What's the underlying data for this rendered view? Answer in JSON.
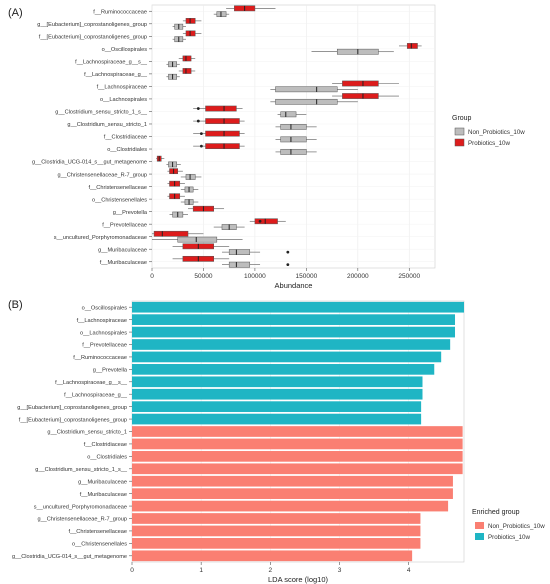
{
  "chart_data": [
    {
      "panel": "(A)",
      "type": "boxplot",
      "xlabel": "Abundance",
      "xlim": [
        0,
        275000
      ],
      "xticks": [
        0,
        50000,
        100000,
        150000,
        200000,
        250000
      ],
      "grid": true,
      "legend_title": "Group",
      "legend_placement": "right",
      "groups": [
        {
          "name": "Non_Probiotics_10w",
          "color": "#bdbdbd"
        },
        {
          "name": "Probiotics_10w",
          "color": "#dd1c1c"
        }
      ],
      "taxa": [
        {
          "label": "f__Ruminococcaceae",
          "non": {
            "wmin": 60000,
            "q1": 63000,
            "median": 67000,
            "q3": 72000,
            "wmax": 75000,
            "outliers": []
          },
          "pro": {
            "wmin": 72000,
            "q1": 80000,
            "median": 90000,
            "q3": 100000,
            "wmax": 120000,
            "outliers": []
          }
        },
        {
          "label": "g__[Eubacterium]_coprostanoligenes_group",
          "non": {
            "wmin": 20000,
            "q1": 22000,
            "median": 26000,
            "q3": 30000,
            "wmax": 33000,
            "outliers": []
          },
          "pro": {
            "wmin": 30000,
            "q1": 33000,
            "median": 37000,
            "q3": 42000,
            "wmax": 48000,
            "outliers": []
          }
        },
        {
          "label": "f__[Eubacterium]_coprostanoligenes_group",
          "non": {
            "wmin": 20000,
            "q1": 22000,
            "median": 26000,
            "q3": 30000,
            "wmax": 33000,
            "outliers": []
          },
          "pro": {
            "wmin": 30000,
            "q1": 33000,
            "median": 37000,
            "q3": 42000,
            "wmax": 48000,
            "outliers": []
          }
        },
        {
          "label": "o__Oscillospirales",
          "non": {
            "wmin": 155000,
            "q1": 180000,
            "median": 200000,
            "q3": 220000,
            "wmax": 235000,
            "outliers": []
          },
          "pro": {
            "wmin": 240000,
            "q1": 248000,
            "median": 252000,
            "q3": 258000,
            "wmax": 262000,
            "outliers": []
          }
        },
        {
          "label": "f__Lachnospiraceae_g__s__",
          "non": {
            "wmin": 14000,
            "q1": 16000,
            "median": 20000,
            "q3": 24000,
            "wmax": 27000,
            "outliers": []
          },
          "pro": {
            "wmin": 26000,
            "q1": 30000,
            "median": 33000,
            "q3": 38000,
            "wmax": 42000,
            "outliers": []
          }
        },
        {
          "label": "f__Lachnospiraceae_g__",
          "non": {
            "wmin": 14000,
            "q1": 16000,
            "median": 20000,
            "q3": 24000,
            "wmax": 27000,
            "outliers": []
          },
          "pro": {
            "wmin": 26000,
            "q1": 30000,
            "median": 33000,
            "q3": 38000,
            "wmax": 42000,
            "outliers": []
          }
        },
        {
          "label": "f__Lachnospiraceae",
          "non": {
            "wmin": 115000,
            "q1": 120000,
            "median": 160000,
            "q3": 180000,
            "wmax": 200000,
            "outliers": []
          },
          "pro": {
            "wmin": 175000,
            "q1": 185000,
            "median": 205000,
            "q3": 220000,
            "wmax": 240000,
            "outliers": []
          }
        },
        {
          "label": "o__Lachnospirales",
          "non": {
            "wmin": 115000,
            "q1": 120000,
            "median": 160000,
            "q3": 180000,
            "wmax": 200000,
            "outliers": []
          },
          "pro": {
            "wmin": 175000,
            "q1": 185000,
            "median": 205000,
            "q3": 220000,
            "wmax": 240000,
            "outliers": []
          }
        },
        {
          "label": "g__Clostridium_sensu_stricto_1_s__",
          "non": {
            "wmin": 122000,
            "q1": 125000,
            "median": 130000,
            "q3": 140000,
            "wmax": 150000,
            "outliers": []
          },
          "pro": {
            "wmin": 40000,
            "q1": 52000,
            "median": 70000,
            "q3": 82000,
            "wmax": 88000,
            "outliers": [
              45000
            ]
          }
        },
        {
          "label": "g__Clostridium_sensu_stricto_1",
          "non": {
            "wmin": 120000,
            "q1": 125000,
            "median": 135000,
            "q3": 150000,
            "wmax": 160000,
            "outliers": []
          },
          "pro": {
            "wmin": 40000,
            "q1": 52000,
            "median": 70000,
            "q3": 85000,
            "wmax": 90000,
            "outliers": [
              45000
            ]
          }
        },
        {
          "label": "f__Clostridiaceae",
          "non": {
            "wmin": 120000,
            "q1": 125000,
            "median": 135000,
            "q3": 150000,
            "wmax": 160000,
            "outliers": []
          },
          "pro": {
            "wmin": 40000,
            "q1": 52000,
            "median": 70000,
            "q3": 85000,
            "wmax": 90000,
            "outliers": [
              48000
            ]
          }
        },
        {
          "label": "o__Clostridiales",
          "non": {
            "wmin": 120000,
            "q1": 125000,
            "median": 135000,
            "q3": 150000,
            "wmax": 160000,
            "outliers": []
          },
          "pro": {
            "wmin": 40000,
            "q1": 52000,
            "median": 70000,
            "q3": 85000,
            "wmax": 90000,
            "outliers": [
              48000
            ]
          }
        },
        {
          "label": "g__Clostridia_UCG-014_s__gut_metagenome",
          "non": {
            "wmin": 14000,
            "q1": 16000,
            "median": 20000,
            "q3": 24000,
            "wmax": 28000,
            "outliers": []
          },
          "pro": {
            "wmin": 4000,
            "q1": 5000,
            "median": 7000,
            "q3": 9000,
            "wmax": 12000,
            "outliers": []
          }
        },
        {
          "label": "g__Christensenellaceae_R-7_group",
          "non": {
            "wmin": 28000,
            "q1": 33000,
            "median": 37000,
            "q3": 42000,
            "wmax": 48000,
            "outliers": []
          },
          "pro": {
            "wmin": 15000,
            "q1": 17000,
            "median": 21000,
            "q3": 25000,
            "wmax": 30000,
            "outliers": []
          }
        },
        {
          "label": "f__Christensenellaceae",
          "non": {
            "wmin": 28000,
            "q1": 32000,
            "median": 36000,
            "q3": 40000,
            "wmax": 45000,
            "outliers": []
          },
          "pro": {
            "wmin": 15000,
            "q1": 17000,
            "median": 22000,
            "q3": 27000,
            "wmax": 32000,
            "outliers": []
          }
        },
        {
          "label": "o__Christensenellales",
          "non": {
            "wmin": 28000,
            "q1": 32000,
            "median": 36000,
            "q3": 40000,
            "wmax": 45000,
            "outliers": []
          },
          "pro": {
            "wmin": 15000,
            "q1": 17000,
            "median": 22000,
            "q3": 27000,
            "wmax": 32000,
            "outliers": []
          }
        },
        {
          "label": "g__Prevotella",
          "non": {
            "wmin": 17000,
            "q1": 20000,
            "median": 25000,
            "q3": 30000,
            "wmax": 35000,
            "outliers": []
          },
          "pro": {
            "wmin": 35000,
            "q1": 40000,
            "median": 50000,
            "q3": 60000,
            "wmax": 70000,
            "outliers": []
          }
        },
        {
          "label": "f__Prevotellaceae",
          "non": {
            "wmin": 60000,
            "q1": 68000,
            "median": 75000,
            "q3": 82000,
            "wmax": 90000,
            "outliers": []
          },
          "pro": {
            "wmin": 95000,
            "q1": 100000,
            "median": 110000,
            "q3": 122000,
            "wmax": 130000,
            "outliers": [
              105000
            ]
          }
        },
        {
          "label": "s__uncultured_Porphyromonadaceae",
          "non": {
            "wmin": 0,
            "q1": 25000,
            "median": 43000,
            "q3": 63000,
            "wmax": 88000,
            "outliers": []
          },
          "pro": {
            "wmin": 0,
            "q1": 2000,
            "median": 10000,
            "q3": 35000,
            "wmax": 50000,
            "outliers": []
          }
        },
        {
          "label": "g__Muribaculaceae",
          "non": {
            "wmin": 68000,
            "q1": 75000,
            "median": 82000,
            "q3": 95000,
            "wmax": 105000,
            "outliers": [
              132000
            ]
          },
          "pro": {
            "wmin": 20000,
            "q1": 30000,
            "median": 45000,
            "q3": 60000,
            "wmax": 75000,
            "outliers": []
          }
        },
        {
          "label": "f__Muribaculaceae",
          "non": {
            "wmin": 68000,
            "q1": 75000,
            "median": 82000,
            "q3": 95000,
            "wmax": 105000,
            "outliers": [
              132000
            ]
          },
          "pro": {
            "wmin": 20000,
            "q1": 30000,
            "median": 45000,
            "q3": 60000,
            "wmax": 75000,
            "outliers": []
          }
        }
      ]
    },
    {
      "panel": "(B)",
      "type": "bar",
      "orientation": "horizontal",
      "xlabel": "LDA score (log10)",
      "xlim": [
        0,
        4.8
      ],
      "xticks": [
        0,
        1,
        2,
        3,
        4
      ],
      "grid": true,
      "legend_title": "Enriched group",
      "legend_placement": "right",
      "legend": [
        {
          "name": "Non_Probiotics_10w",
          "color": "#fa7f72"
        },
        {
          "name": "Probiotics_10w",
          "color": "#1fb5c4"
        }
      ],
      "categories": [
        "o__Oscillospirales",
        "f__Lachnospiraceae",
        "o__Lachnospirales",
        "f__Prevotellaceae",
        "f__Ruminococcaceae",
        "g__Prevotella",
        "f__Lachnospiraceae_g__s__",
        "f__Lachnospiraceae_g__",
        "g__[Eubacterium]_coprostanoligenes_group",
        "f__[Eubacterium]_coprostanoligenes_group",
        "g__Clostridium_sensu_stricto_1",
        "f__Clostridiaceae",
        "o__Clostridiales",
        "g__Clostridium_sensu_stricto_1_s__",
        "g__Muribaculaceae",
        "f__Muribaculaceae",
        "s__uncultured_Porphyromonadaceae",
        "g__Christensenellaceae_R-7_group",
        "f__Christensenellaceae",
        "o__Christensenellales",
        "g__Clostridia_UCG-014_s__gut_metagenome"
      ],
      "values": [
        4.8,
        4.67,
        4.67,
        4.6,
        4.47,
        4.37,
        4.2,
        4.2,
        4.18,
        4.18,
        4.78,
        4.78,
        4.78,
        4.78,
        4.64,
        4.64,
        4.57,
        4.17,
        4.17,
        4.17,
        4.05
      ],
      "enriched": [
        "Probiotics_10w",
        "Probiotics_10w",
        "Probiotics_10w",
        "Probiotics_10w",
        "Probiotics_10w",
        "Probiotics_10w",
        "Probiotics_10w",
        "Probiotics_10w",
        "Probiotics_10w",
        "Probiotics_10w",
        "Non_Probiotics_10w",
        "Non_Probiotics_10w",
        "Non_Probiotics_10w",
        "Non_Probiotics_10w",
        "Non_Probiotics_10w",
        "Non_Probiotics_10w",
        "Non_Probiotics_10w",
        "Non_Probiotics_10w",
        "Non_Probiotics_10w",
        "Non_Probiotics_10w",
        "Non_Probiotics_10w"
      ]
    }
  ]
}
